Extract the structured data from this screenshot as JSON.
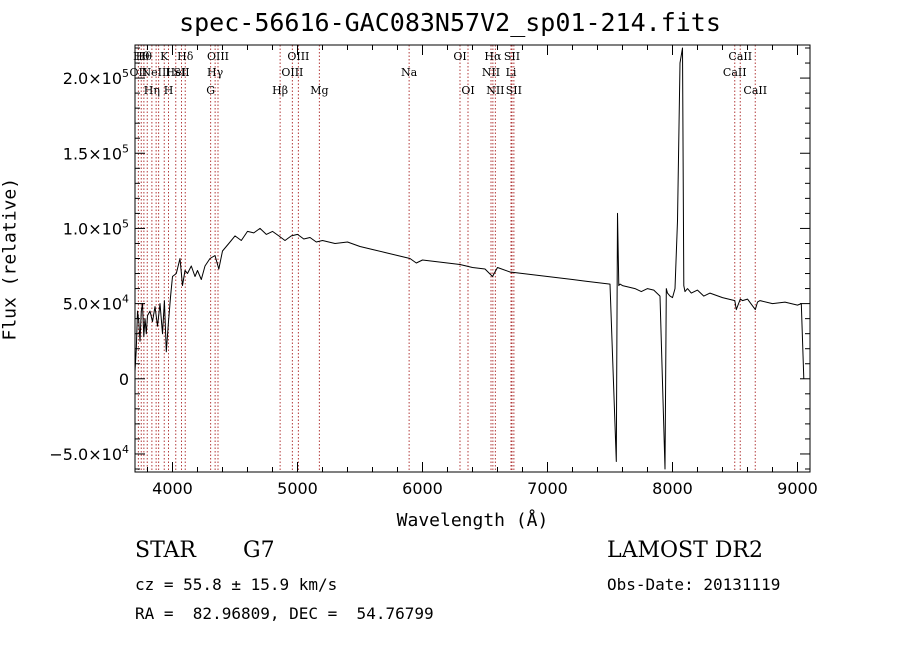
{
  "chart_data": {
    "type": "line",
    "title": "spec-56616-GAC083N57V2_sp01-214.fits",
    "xlabel": "Wavelength (Å)",
    "ylabel": "Flux (relative)",
    "xlim": [
      3700,
      9100
    ],
    "ylim": [
      -62000,
      222000
    ],
    "xticks": [
      4000,
      5000,
      6000,
      7000,
      8000,
      9000
    ],
    "xtick_labels": [
      "4000",
      "5000",
      "6000",
      "7000",
      "8000",
      "9000"
    ],
    "yticks": [
      -50000,
      0,
      50000,
      100000,
      150000,
      200000
    ],
    "ytick_labels": [
      {
        "mant": "−5.0×10",
        "exp": "4"
      },
      {
        "mant": "0",
        "exp": ""
      },
      {
        "mant": "5.0×10",
        "exp": "4"
      },
      {
        "mant": "1.0×10",
        "exp": "5"
      },
      {
        "mant": "1.5×10",
        "exp": "5"
      },
      {
        "mant": "2.0×10",
        "exp": "5"
      }
    ],
    "grid": false,
    "series": [
      {
        "x": [
          3700,
          3710,
          3720,
          3730,
          3740,
          3750,
          3760,
          3770,
          3780,
          3790,
          3800,
          3820,
          3840,
          3860,
          3880,
          3900,
          3920,
          3935,
          3950,
          3968,
          3985,
          4000,
          4030,
          4060,
          4080,
          4100,
          4120,
          4150,
          4180,
          4200,
          4230,
          4260,
          4300,
          4340,
          4370,
          4400,
          4450,
          4500,
          4550,
          4600,
          4650,
          4700,
          4750,
          4800,
          4850,
          4900,
          4950,
          5000,
          5050,
          5100,
          5150,
          5200,
          5300,
          5400,
          5500,
          5600,
          5700,
          5800,
          5900,
          5950,
          6000,
          6100,
          6200,
          6300,
          6400,
          6500,
          6560,
          6600,
          6700,
          6800,
          6900,
          7000,
          7100,
          7200,
          7300,
          7400,
          7500,
          7550,
          7560,
          7570,
          7580,
          7600,
          7650,
          7700,
          7750,
          7800,
          7850,
          7900,
          7940,
          7950,
          7960,
          7980,
          8000,
          8020,
          8040,
          8060,
          8080,
          8090,
          8100,
          8120,
          8150,
          8200,
          8250,
          8300,
          8400,
          8498,
          8510,
          8542,
          8560,
          8600,
          8662,
          8680,
          8700,
          8800,
          8900,
          9000,
          9030,
          9050
        ],
        "y": [
          5000,
          20000,
          45000,
          38000,
          25000,
          45000,
          50000,
          28000,
          40000,
          30000,
          42000,
          45000,
          38000,
          48000,
          35000,
          50000,
          30000,
          52000,
          18000,
          38000,
          55000,
          68000,
          70000,
          80000,
          62000,
          72000,
          70000,
          75000,
          68000,
          72000,
          66000,
          75000,
          80000,
          82000,
          73000,
          85000,
          90000,
          95000,
          92000,
          98000,
          97000,
          100000,
          96000,
          98000,
          95000,
          92000,
          95000,
          96000,
          93000,
          94000,
          91000,
          92000,
          90000,
          91000,
          88000,
          86000,
          84000,
          82000,
          80000,
          77000,
          79000,
          78000,
          77000,
          76000,
          74000,
          73000,
          68000,
          74000,
          71000,
          70000,
          69000,
          68000,
          67000,
          66000,
          65000,
          64000,
          63000,
          -55000,
          110000,
          62000,
          63000,
          62000,
          61000,
          60000,
          58000,
          60000,
          59000,
          55000,
          -60000,
          60000,
          57000,
          55000,
          54000,
          60000,
          105000,
          210000,
          220000,
          62000,
          58000,
          60000,
          57000,
          59000,
          55000,
          57000,
          54000,
          52000,
          46000,
          53000,
          52000,
          53000,
          46000,
          51000,
          52000,
          50000,
          51000,
          49000,
          50000,
          0
        ]
      }
    ],
    "lines_data": [
      {
        "x": 3727,
        "label": "OII",
        "row": 1
      },
      {
        "x": 3750,
        "label": "Hθ",
        "row": 0
      },
      {
        "x": 3771,
        "label": "Hθ",
        "row": 0
      },
      {
        "x": 3798,
        "label": "",
        "row": -1
      },
      {
        "x": 3835,
        "label": "Hη",
        "row": 2
      },
      {
        "x": 3869,
        "label": "NeIII",
        "row": 1
      },
      {
        "x": 3889,
        "label": "",
        "row": -1
      },
      {
        "x": 3934,
        "label": "K",
        "row": 0
      },
      {
        "x": 3968,
        "label": "H",
        "row": 2
      },
      {
        "x": 4026,
        "label": "HeI",
        "row": 1
      },
      {
        "x": 4072,
        "label": "SII",
        "row": 1
      },
      {
        "x": 4102,
        "label": "Hδ",
        "row": 0
      },
      {
        "x": 4305,
        "label": "G",
        "row": 2
      },
      {
        "x": 4341,
        "label": "Hγ",
        "row": 1
      },
      {
        "x": 4364,
        "label": "OIII",
        "row": 0
      },
      {
        "x": 4861,
        "label": "Hβ",
        "row": 2
      },
      {
        "x": 4959,
        "label": "OIII",
        "row": 1
      },
      {
        "x": 5007,
        "label": "OIII",
        "row": 0
      },
      {
        "x": 5175,
        "label": "Mg",
        "row": 2
      },
      {
        "x": 5893,
        "label": "Na",
        "row": 1
      },
      {
        "x": 6300,
        "label": "OI",
        "row": 0
      },
      {
        "x": 6364,
        "label": "OI",
        "row": 2
      },
      {
        "x": 6548,
        "label": "NII",
        "row": 1
      },
      {
        "x": 6563,
        "label": "Hα",
        "row": 0
      },
      {
        "x": 6583,
        "label": "NII",
        "row": 2
      },
      {
        "x": 6708,
        "label": "Li",
        "row": 1
      },
      {
        "x": 6716,
        "label": "SII",
        "row": 0
      },
      {
        "x": 6731,
        "label": "SII",
        "row": 2
      },
      {
        "x": 8498,
        "label": "CaII",
        "row": 1
      },
      {
        "x": 8542,
        "label": "CaII",
        "row": 0
      },
      {
        "x": 8662,
        "label": "CaII",
        "row": 2
      }
    ],
    "line_color": "#b23a3a"
  },
  "info": {
    "class": "STAR",
    "subclass": "G7",
    "survey": "LAMOST DR2",
    "cz": "cz = 55.8 ± 15.9 km/s",
    "obsdate": "Obs-Date: 20131119",
    "radec": "RA =  82.96809, DEC =  54.76799"
  }
}
